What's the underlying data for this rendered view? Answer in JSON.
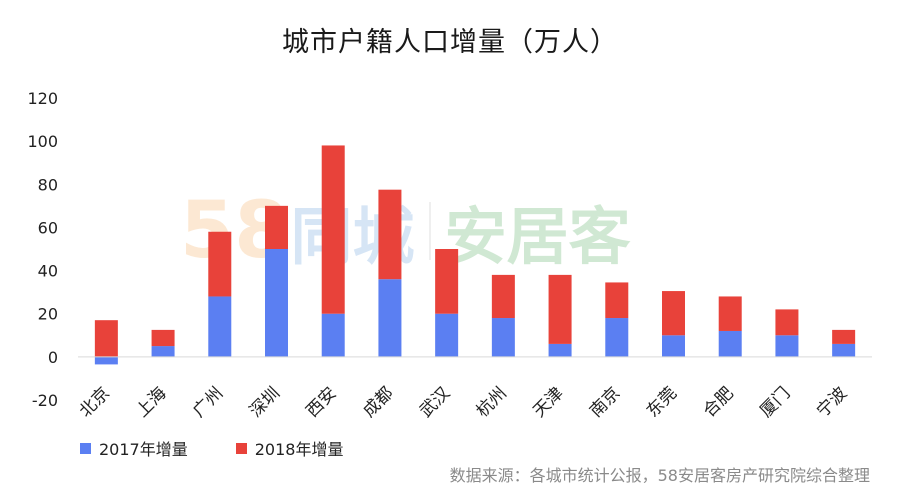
{
  "chart_data": {
    "type": "bar",
    "stacked": true,
    "title": "城市户籍人口增量（万人）",
    "categories": [
      "北京",
      "上海",
      "广州",
      "深圳",
      "西安",
      "成都",
      "武汉",
      "杭州",
      "天津",
      "南京",
      "东莞",
      "合肥",
      "厦门",
      "宁波"
    ],
    "series": [
      {
        "name": "2017年增量",
        "color": "#5b7ff2",
        "values": [
          -3.5,
          5,
          28,
          50,
          20,
          36,
          20,
          18,
          6,
          18,
          10,
          12,
          10,
          6
        ]
      },
      {
        "name": "2018年增量",
        "color": "#e8423a",
        "values": [
          17,
          7.5,
          30,
          20,
          78,
          41.5,
          30,
          20,
          32,
          16.5,
          20.5,
          16,
          12,
          6.5
        ]
      }
    ],
    "ylim": [
      -20,
      120
    ],
    "yticks": [
      -20,
      0,
      20,
      40,
      60,
      80,
      100,
      120
    ],
    "grid": false,
    "legend_position": "bottom-left",
    "xlabel": "",
    "ylabel": ""
  },
  "source_text": "数据来源：各城市统计公报，58安居客房产研究院综合整理",
  "watermark": {
    "part1": "58",
    "part2": "同城",
    "part3": "安居客"
  }
}
